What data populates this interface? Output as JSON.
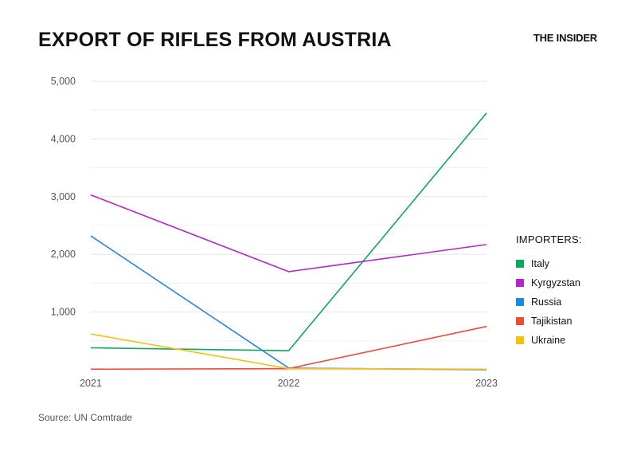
{
  "header": {
    "title": "EXPORT OF RIFLES FROM AUSTRIA",
    "brand": "THE INSIDER"
  },
  "footer": {
    "source": "Source: UN Comtrade"
  },
  "legend": {
    "title": "IMPORTERS:"
  },
  "chart_data": {
    "type": "line",
    "title": "EXPORT OF RIFLES FROM AUSTRIA",
    "x": [
      "2021",
      "2022",
      "2023"
    ],
    "ylim": [
      0,
      5000
    ],
    "yticks": [
      1000,
      2000,
      3000,
      4000,
      5000
    ],
    "ytick_labels": [
      "1,000",
      "2,000",
      "3,000",
      "4,000",
      "5,000"
    ],
    "grid": true,
    "legend_position": "right",
    "series": [
      {
        "name": "Italy",
        "color": "#0ea85a",
        "values": [
          380,
          330,
          4450
        ]
      },
      {
        "name": "Kyrgyzstan",
        "color": "#b526c8",
        "values": [
          3030,
          1700,
          2170
        ]
      },
      {
        "name": "Russia",
        "color": "#1e88e5",
        "values": [
          2320,
          30,
          0
        ]
      },
      {
        "name": "Tajikistan",
        "color": "#ef4b36",
        "values": [
          10,
          20,
          750
        ]
      },
      {
        "name": "Ukraine",
        "color": "#f7bf10",
        "values": [
          620,
          20,
          10
        ]
      }
    ]
  }
}
